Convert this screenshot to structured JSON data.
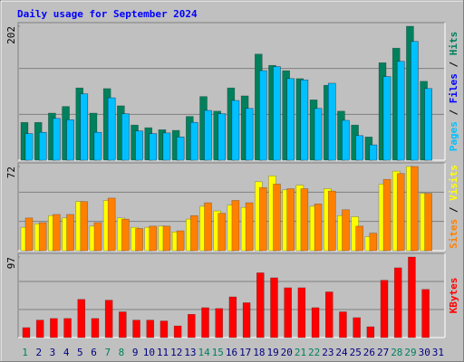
{
  "chart_data": {
    "type": "bar",
    "title": "Daily usage for September 2024",
    "title_color": "#0000ff",
    "legend_separator": " / ",
    "categories": [
      "1",
      "2",
      "3",
      "4",
      "5",
      "6",
      "7",
      "8",
      "9",
      "10",
      "11",
      "12",
      "13",
      "14",
      "15",
      "16",
      "17",
      "18",
      "19",
      "20",
      "21",
      "22",
      "23",
      "24",
      "25",
      "26",
      "27",
      "28",
      "29",
      "30",
      "31"
    ],
    "category_colors": [
      "#00805c",
      "#000080",
      "#000080",
      "#000080",
      "#000080",
      "#000080",
      "#00805c",
      "#00805c",
      "#000080",
      "#000080",
      "#000080",
      "#000080",
      "#000080",
      "#00805c",
      "#00805c",
      "#000080",
      "#000080",
      "#000080",
      "#000080",
      "#000080",
      "#00805c",
      "#00805c",
      "#000080",
      "#000080",
      "#000080",
      "#000080",
      "#000080",
      "#00805c",
      "#00805c",
      "#000080",
      "#000080"
    ],
    "grid": true,
    "panels": [
      {
        "ylim": [
          0,
          202
        ],
        "yticks": [
          202
        ],
        "series": [
          {
            "name": "Hits",
            "color": "#00805c",
            "values": [
              57,
              57,
              71,
              81,
              109,
              71,
              108,
              82,
              53,
              49,
              46,
              45,
              66,
              96,
              74,
              109,
              97,
              160,
              143,
              135,
              123,
              91,
              113,
              74,
              53,
              35,
              147,
              169,
              202,
              119,
              null
            ]
          },
          {
            "name": "Files",
            "color": "#0000ff",
            "values": [
              40,
              42,
              63,
              61,
              100,
              42,
              94,
              70,
              44,
              40,
              41,
              35,
              57,
              75,
              70,
              90,
              78,
              135,
              141,
              123,
              121,
              78,
              116,
              60,
              37,
              23,
              126,
              149,
              179,
              108,
              null
            ]
          },
          {
            "name": "Pages",
            "color": "#00c0ff",
            "values": [
              40,
              42,
              63,
              61,
              100,
              42,
              94,
              70,
              44,
              40,
              41,
              35,
              57,
              75,
              70,
              90,
              78,
              135,
              141,
              123,
              121,
              78,
              116,
              60,
              37,
              23,
              126,
              149,
              179,
              108,
              null
            ]
          }
        ]
      },
      {
        "ylim": [
          0,
          72
        ],
        "yticks": [
          72
        ],
        "series": [
          {
            "name": "Visits",
            "color": "#ffff00",
            "values": [
              20,
              23,
              30,
              28,
              42,
              21,
              43,
              28,
              20,
              20,
              21,
              16,
              27,
              38,
              34,
              39,
              37,
              59,
              64,
              52,
              56,
              38,
              53,
              30,
              29,
              12,
              57,
              68,
              72,
              49,
              null
            ]
          },
          {
            "name": "Sites",
            "color": "#ff8000",
            "values": [
              28,
              24,
              31,
              31,
              42,
              24,
              45,
              27,
              19,
              21,
              21,
              17,
              30,
              41,
              32,
              43,
              41,
              54,
              57,
              53,
              53,
              40,
              51,
              35,
              21,
              15,
              61,
              66,
              72,
              49,
              null
            ]
          }
        ]
      },
      {
        "ylim": [
          0,
          97
        ],
        "yticks": [
          97
        ],
        "series": [
          {
            "name": "KBytes",
            "color": "#ff0000",
            "values": [
              12,
              21,
              23,
              23,
              46,
              23,
              45,
              31,
              21,
              21,
              20,
              14,
              28,
              36,
              35,
              49,
              42,
              78,
              72,
              60,
              60,
              36,
              55,
              31,
              24,
              13,
              69,
              84,
              97,
              58,
              null
            ]
          }
        ]
      }
    ]
  }
}
